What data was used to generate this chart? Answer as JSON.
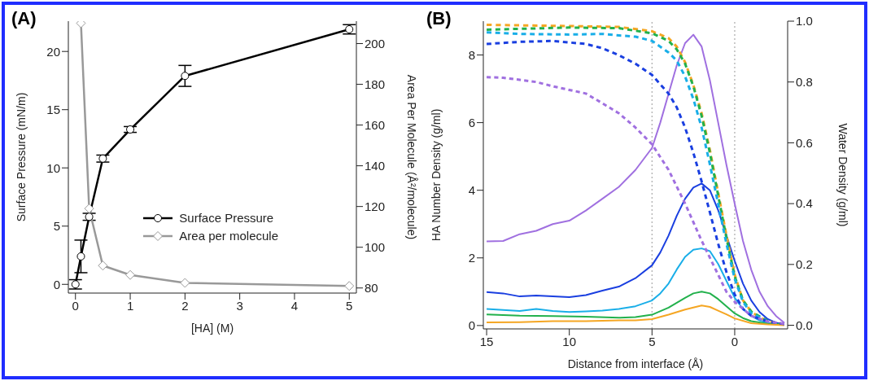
{
  "chart_data": [
    {
      "type": "line",
      "title": "(A)",
      "xlabel": "[HA] (M)",
      "ylabel": "Surface Pressure (mN/m)",
      "y2label": "Area Per Molecule (Å²/molecule)",
      "xlim": [
        -0.13,
        5.13
      ],
      "xticks": [
        0,
        1,
        2,
        3,
        4,
        5
      ],
      "ylim": [
        -0.75,
        22.6
      ],
      "yticks": [
        0,
        5,
        10,
        15,
        20
      ],
      "y2lim": [
        77.5,
        211
      ],
      "y2ticks": [
        80,
        100,
        120,
        140,
        160,
        180,
        200
      ],
      "legend": "right",
      "series": [
        {
          "name": "Surface Pressure",
          "color": "#000000",
          "marker": "circle",
          "x": [
            0,
            0.1,
            0.25,
            0.5,
            1,
            2,
            5
          ],
          "values": [
            0,
            2.4,
            5.8,
            10.8,
            13.3,
            17.9,
            21.9
          ],
          "errors": [
            0.4,
            1.4,
            0.3,
            0.3,
            0.25,
            0.9,
            0.4
          ]
        },
        {
          "name": "Area per molecule",
          "color": "#999999",
          "marker": "diamond",
          "axis": "y2",
          "x": [
            0.1,
            0.25,
            0.5,
            1,
            2,
            5
          ],
          "values": [
            210,
            119,
            91,
            86.4,
            82.5,
            81
          ]
        }
      ]
    },
    {
      "type": "line",
      "title": "(B)",
      "xlabel": "Distance from interface (Å)",
      "ylabel": "HA Number Density (g/ml)",
      "y2label": "Water Density (g/ml)",
      "xlim": [
        15.2,
        -3.2
      ],
      "xticks": [
        15,
        10,
        5,
        0
      ],
      "ylim": [
        -0.1,
        9.0
      ],
      "yticks": [
        0,
        2,
        4,
        6,
        8
      ],
      "y2lim": [
        -0.012,
        1.0
      ],
      "y2ticks": [
        {
          "value": 0,
          "label": "0.0"
        },
        {
          "value": 0.2,
          "label": "0.2"
        },
        {
          "value": 0.4,
          "label": "0.4"
        },
        {
          "value": 0.6,
          "label": "0.6"
        },
        {
          "value": 0.8,
          "label": "0.8"
        },
        {
          "value": 1,
          "label": "1.0"
        }
      ],
      "ref_lines": [
        {
          "axis": "x",
          "value": 5,
          "color": "#aaaaaa",
          "line_style": "dotted"
        },
        {
          "axis": "x",
          "value": 0,
          "color": "#aaaaaa",
          "line_style": "dotted"
        }
      ],
      "series": [
        {
          "color": "#a070e0",
          "line_style": "solid",
          "x": [
            15,
            14,
            13,
            12,
            11,
            10,
            9,
            8,
            7,
            6,
            5,
            4.5,
            4,
            3.5,
            3,
            2.5,
            2,
            1.5,
            1,
            0.5,
            0,
            -0.5,
            -1,
            -1.5,
            -2,
            -2.5,
            -3
          ],
          "values": [
            2.49,
            2.5,
            2.7,
            2.8,
            3.0,
            3.1,
            3.4,
            3.75,
            4.1,
            4.6,
            5.25,
            6.0,
            6.85,
            7.7,
            8.35,
            8.6,
            8.25,
            7.25,
            6.0,
            4.75,
            3.6,
            2.5,
            1.65,
            1.0,
            0.57,
            0.28,
            0.08
          ]
        },
        {
          "color": "#1a3fe0",
          "line_style": "solid",
          "x": [
            15,
            14,
            13,
            12,
            11,
            10,
            9,
            8,
            7,
            6,
            5,
            4.5,
            4,
            3.5,
            3,
            2.5,
            2,
            1.5,
            1,
            0.5,
            0,
            -0.5,
            -1,
            -1.5,
            -2,
            -2.5,
            -3
          ],
          "values": [
            0.99,
            0.95,
            0.86,
            0.89,
            0.86,
            0.84,
            0.9,
            1.03,
            1.15,
            1.4,
            1.78,
            2.16,
            2.66,
            3.25,
            3.75,
            4.08,
            4.2,
            4.0,
            3.41,
            2.66,
            1.91,
            1.24,
            0.74,
            0.4,
            0.19,
            0.08,
            0.04
          ]
        },
        {
          "color": "#19aee8",
          "line_style": "solid",
          "x": [
            15,
            13,
            12,
            11,
            10,
            9,
            8,
            7,
            6,
            5,
            4.5,
            4,
            3.5,
            3,
            2.5,
            2,
            1.5,
            1,
            0.5,
            0,
            -0.5,
            -1,
            -1.5,
            -2,
            -2.5,
            -3
          ],
          "values": [
            0.49,
            0.43,
            0.49,
            0.43,
            0.4,
            0.42,
            0.44,
            0.49,
            0.57,
            0.74,
            0.95,
            1.24,
            1.66,
            2.03,
            2.24,
            2.28,
            2.2,
            1.82,
            1.32,
            0.82,
            0.49,
            0.28,
            0.15,
            0.08,
            0.05,
            0.03
          ]
        },
        {
          "color": "#22b14c",
          "line_style": "solid",
          "x": [
            15,
            13,
            11,
            9,
            7,
            6,
            5,
            4,
            3,
            2.5,
            2,
            1.5,
            1,
            0.5,
            0,
            -0.5,
            -1,
            -2,
            -3
          ],
          "values": [
            0.33,
            0.29,
            0.28,
            0.26,
            0.23,
            0.25,
            0.32,
            0.53,
            0.82,
            0.95,
            1.0,
            0.95,
            0.78,
            0.57,
            0.36,
            0.22,
            0.13,
            0.05,
            0.03
          ]
        },
        {
          "color": "#f5a623",
          "line_style": "solid",
          "x": [
            15,
            13,
            11,
            9,
            7,
            6,
            5,
            4,
            3,
            2.5,
            2,
            1.5,
            1,
            0.5,
            0,
            -1,
            -2,
            -3
          ],
          "values": [
            0.09,
            0.1,
            0.13,
            0.13,
            0.15,
            0.15,
            0.19,
            0.32,
            0.47,
            0.53,
            0.59,
            0.55,
            0.44,
            0.33,
            0.21,
            0.07,
            0.03,
            0.01
          ]
        },
        {
          "color": "#f5a623",
          "line_style": "dashed",
          "axis": "y2",
          "x": [
            -3,
            -2.5,
            -2,
            -1.5,
            -1,
            -0.5,
            0,
            0.5,
            1,
            1.5,
            2,
            2.5,
            3,
            3.5,
            4,
            5,
            7,
            10,
            15
          ],
          "values": [
            0.004,
            0.007,
            0.014,
            0.026,
            0.045,
            0.082,
            0.166,
            0.296,
            0.436,
            0.576,
            0.697,
            0.79,
            0.865,
            0.916,
            0.944,
            0.967,
            0.981,
            0.984,
            0.988
          ]
        },
        {
          "color": "#22b14c",
          "line_style": "dashed",
          "axis": "y2",
          "x": [
            -2,
            -1,
            -0.5,
            0,
            0.5,
            1,
            1.5,
            2,
            2.5,
            3,
            3.5,
            4,
            5,
            7,
            10,
            15
          ],
          "values": [
            0.014,
            0.045,
            0.082,
            0.161,
            0.287,
            0.427,
            0.567,
            0.688,
            0.786,
            0.86,
            0.907,
            0.935,
            0.96,
            0.977,
            0.979,
            0.972
          ]
        },
        {
          "color": "#19aee8",
          "line_style": "dashed",
          "axis": "y2",
          "x": [
            -2,
            -1,
            -0.5,
            0,
            0.5,
            1,
            1.5,
            2,
            2.5,
            3,
            3.5,
            4,
            5,
            6,
            7,
            8,
            10,
            13,
            15
          ],
          "values": [
            0.012,
            0.04,
            0.077,
            0.152,
            0.268,
            0.399,
            0.529,
            0.65,
            0.744,
            0.818,
            0.87,
            0.897,
            0.935,
            0.949,
            0.953,
            0.958,
            0.956,
            0.958,
            0.963
          ]
        },
        {
          "color": "#1a3fe0",
          "line_style": "dashed",
          "axis": "y2",
          "x": [
            -3,
            -2,
            -1,
            -0.5,
            0,
            0.5,
            1,
            1.5,
            2,
            2.5,
            3,
            3.5,
            4,
            5,
            6,
            7,
            8,
            9,
            11,
            13,
            15
          ],
          "values": [
            0.004,
            0.012,
            0.031,
            0.054,
            0.101,
            0.175,
            0.268,
            0.371,
            0.473,
            0.567,
            0.65,
            0.716,
            0.762,
            0.823,
            0.86,
            0.888,
            0.911,
            0.925,
            0.935,
            0.932,
            0.925
          ]
        },
        {
          "color": "#a070e0",
          "line_style": "dashed",
          "axis": "y2",
          "x": [
            -3,
            -2,
            -1,
            0,
            0.5,
            1,
            2,
            3,
            4,
            5,
            6,
            7,
            8,
            9,
            10,
            11,
            12,
            13,
            14,
            15
          ],
          "values": [
            0.005,
            0.012,
            0.031,
            0.077,
            0.11,
            0.166,
            0.278,
            0.4,
            0.511,
            0.595,
            0.65,
            0.697,
            0.73,
            0.762,
            0.774,
            0.786,
            0.8,
            0.807,
            0.814,
            0.816
          ]
        }
      ]
    }
  ]
}
